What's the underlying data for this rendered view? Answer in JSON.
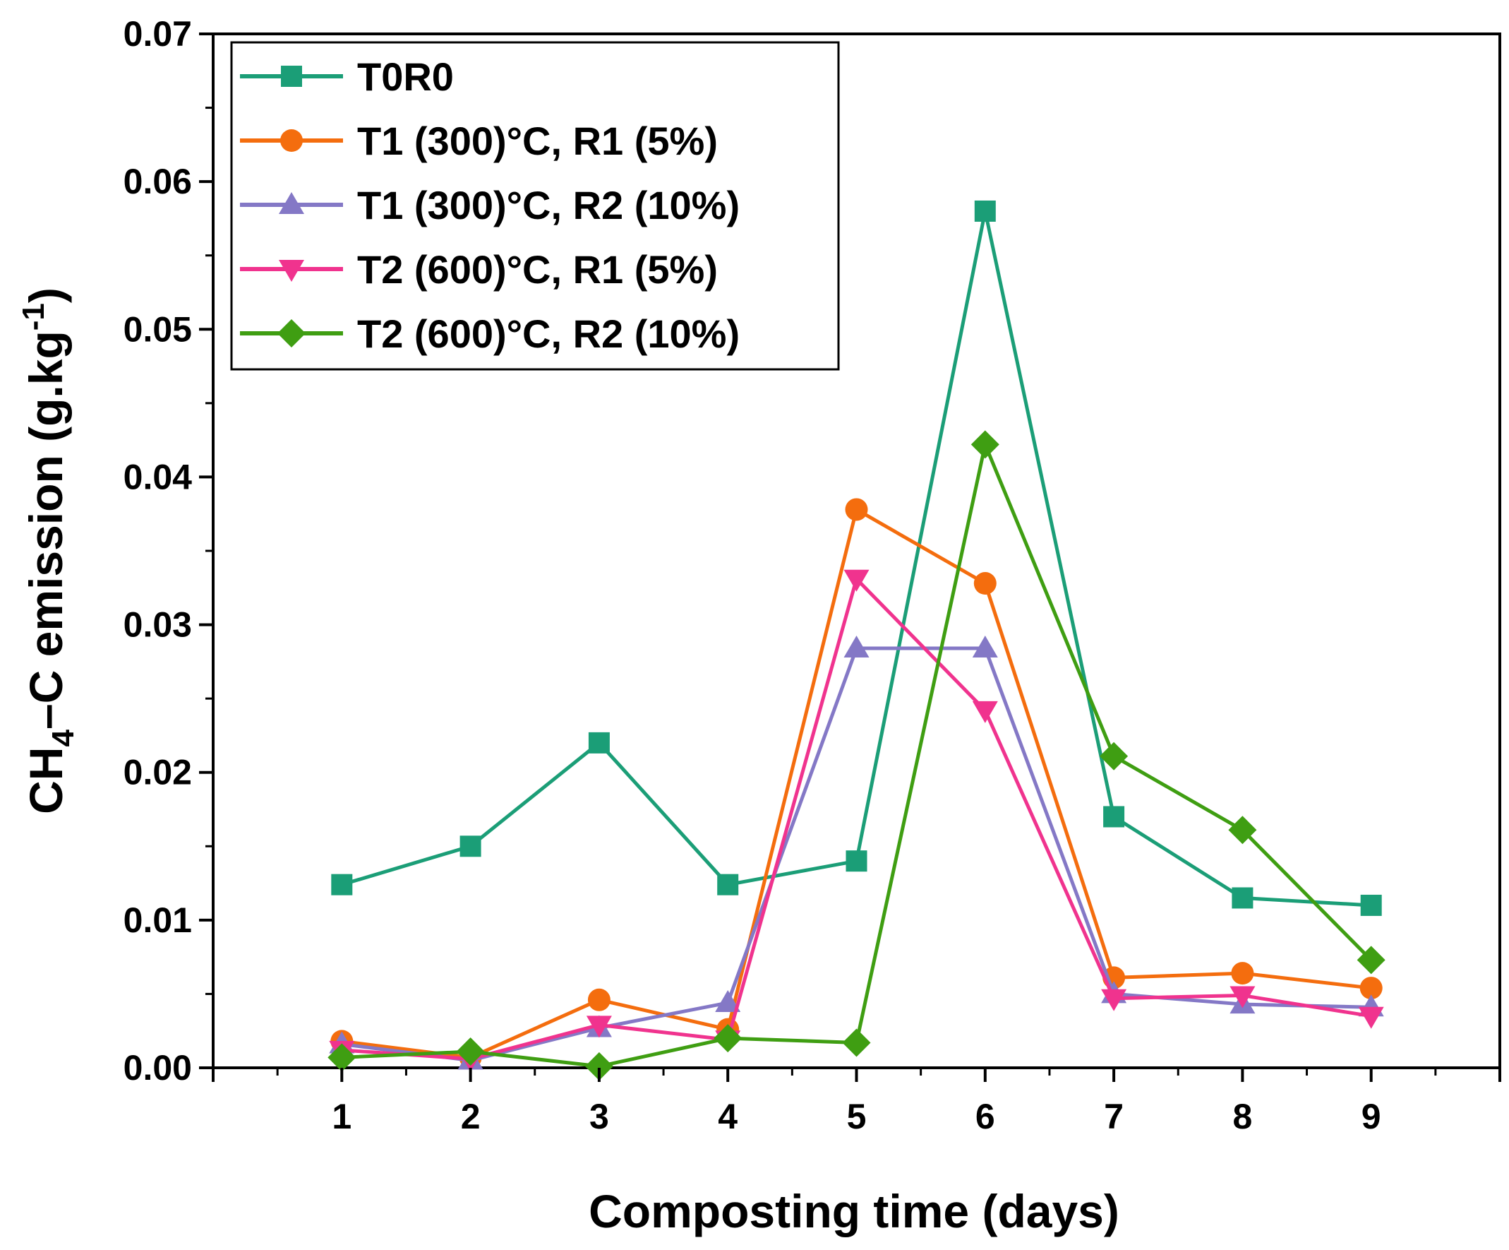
{
  "chart_data": {
    "type": "line",
    "title": "",
    "xlabel": "Composting time (days)",
    "ylabel": {
      "prefix": "CH",
      "sub": "4",
      "middle": "–C emission (g.kg",
      "sup": "-1",
      "suffix": ")"
    },
    "xlim": [
      0,
      10
    ],
    "ylim": [
      0,
      0.07
    ],
    "x": [
      1,
      2,
      3,
      4,
      5,
      6,
      7,
      8,
      9
    ],
    "xticks": [
      "1",
      "2",
      "3",
      "4",
      "5",
      "6",
      "7",
      "8",
      "9"
    ],
    "yticks": [
      "0.00",
      "0.01",
      "0.02",
      "0.03",
      "0.04",
      "0.05",
      "0.06",
      "0.07"
    ],
    "grid": false,
    "legend_position": "top-left",
    "series": [
      {
        "name": "T0R0",
        "color": "#1b9e77",
        "marker": "square",
        "values": [
          0.0124,
          0.015,
          0.022,
          0.0124,
          0.014,
          0.058,
          0.017,
          0.0115,
          0.011
        ]
      },
      {
        "name": "T1 (300)°C, R1 (5%)",
        "color": "#f46d0e",
        "marker": "circle",
        "values": [
          0.0018,
          0.0007,
          0.0046,
          0.0026,
          0.0378,
          0.0328,
          0.0061,
          0.0064,
          0.0054
        ]
      },
      {
        "name": "T1 (300)°C, R2 (10%)",
        "color": "#8478c6",
        "marker": "triangle-up",
        "values": [
          0.0016,
          0.0005,
          0.0027,
          0.0044,
          0.0284,
          0.0284,
          0.005,
          0.0043,
          0.0041
        ]
      },
      {
        "name": "T2 (600)°C, R1 (5%)",
        "color": "#f0338e",
        "marker": "triangle-down",
        "values": [
          0.0012,
          0.0006,
          0.0029,
          0.0019,
          0.0331,
          0.0242,
          0.0047,
          0.0049,
          0.0035
        ]
      },
      {
        "name": "T2 (600)°C, R2 (10%)",
        "color": "#3f9e12",
        "marker": "diamond",
        "values": [
          0.0007,
          0.0011,
          0.0001,
          0.002,
          0.0017,
          0.0422,
          0.0211,
          0.0161,
          0.0073
        ]
      }
    ]
  }
}
